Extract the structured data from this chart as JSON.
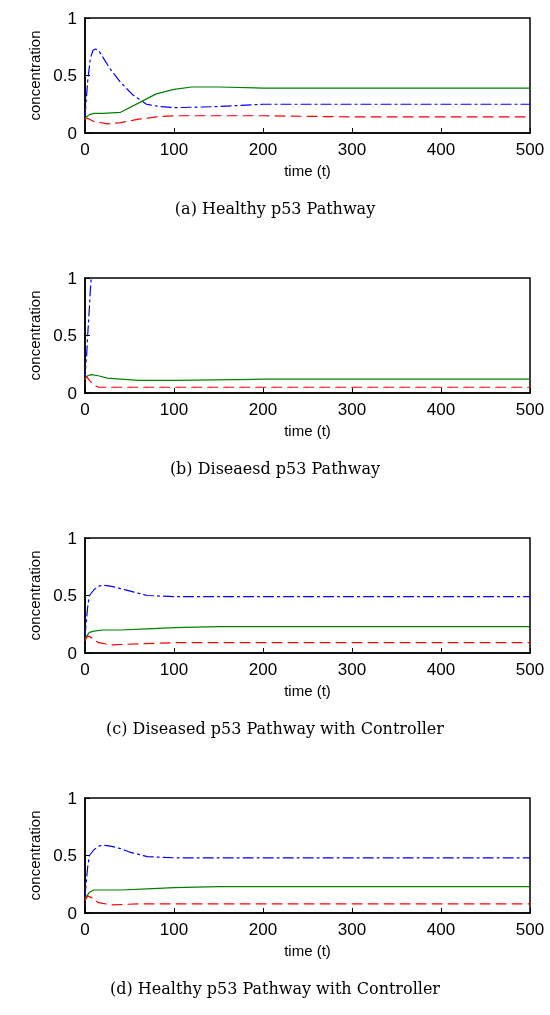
{
  "chart_data": [
    {
      "type": "line",
      "title": "(a) Healthy p53 Pathway",
      "xlabel": "time (t)",
      "ylabel": "concentration",
      "xlim": [
        0,
        500
      ],
      "xticks": [
        0,
        100,
        200,
        300,
        400,
        500
      ],
      "ylim": [
        0,
        1
      ],
      "yticks": [
        0,
        0.5,
        1
      ],
      "grid": false,
      "marker": "none",
      "series": [
        {
          "color": "#0000ff",
          "line_style": "dashdot",
          "x": [
            0,
            3,
            6,
            9,
            12,
            16,
            20,
            28,
            40,
            54,
            69,
            84,
            100,
            150,
            200,
            300,
            400,
            500
          ],
          "values": [
            0.15,
            0.45,
            0.65,
            0.72,
            0.73,
            0.71,
            0.66,
            0.56,
            0.44,
            0.33,
            0.25,
            0.23,
            0.22,
            0.23,
            0.25,
            0.25,
            0.25,
            0.25
          ]
        },
        {
          "color": "#008000",
          "line_style": "solid",
          "x": [
            0,
            5,
            10,
            20,
            40,
            60,
            80,
            100,
            120,
            150,
            200,
            300,
            400,
            500
          ],
          "values": [
            0.13,
            0.16,
            0.17,
            0.17,
            0.18,
            0.26,
            0.34,
            0.38,
            0.4,
            0.4,
            0.39,
            0.39,
            0.39,
            0.39
          ]
        },
        {
          "color": "#ff0000",
          "line_style": "dashed",
          "x": [
            0,
            2,
            5,
            10,
            25,
            40,
            60,
            80,
            100,
            150,
            200,
            300,
            400,
            500
          ],
          "values": [
            0.12,
            0.13,
            0.12,
            0.1,
            0.08,
            0.09,
            0.12,
            0.14,
            0.15,
            0.15,
            0.15,
            0.14,
            0.14,
            0.14
          ]
        }
      ]
    },
    {
      "type": "line",
      "title": "(b) Diseaesd p53 Pathway",
      "xlabel": "time (t)",
      "ylabel": "concentration",
      "xlim": [
        0,
        500
      ],
      "xticks": [
        0,
        100,
        200,
        300,
        400,
        500
      ],
      "ylim": [
        0,
        1
      ],
      "yticks": [
        0,
        0.5,
        1
      ],
      "grid": false,
      "marker": "none",
      "series": [
        {
          "color": "#0000ff",
          "line_style": "dashdot",
          "x": [
            0,
            2,
            3,
            5,
            6,
            7
          ],
          "values": [
            0.15,
            0.35,
            0.5,
            0.75,
            0.9,
            1
          ]
        },
        {
          "color": "#008000",
          "line_style": "solid",
          "x": [
            0,
            3,
            7,
            15,
            25,
            40,
            60,
            100,
            200,
            300,
            400,
            500
          ],
          "values": [
            0.13,
            0.15,
            0.16,
            0.15,
            0.13,
            0.12,
            0.11,
            0.11,
            0.12,
            0.12,
            0.12,
            0.12
          ]
        },
        {
          "color": "#ff0000",
          "line_style": "dashed",
          "x": [
            0,
            2,
            5,
            10,
            15,
            25,
            50,
            100,
            200,
            300,
            400,
            500
          ],
          "values": [
            0.12,
            0.14,
            0.11,
            0.07,
            0.05,
            0.05,
            0.05,
            0.05,
            0.05,
            0.05,
            0.05,
            0.05
          ]
        }
      ]
    },
    {
      "type": "line",
      "title": "(c) Diseased p53 Pathway with Controller",
      "xlabel": "time (t)",
      "ylabel": "concentration",
      "xlim": [
        0,
        500
      ],
      "xticks": [
        0,
        100,
        200,
        300,
        400,
        500
      ],
      "ylim": [
        0,
        1
      ],
      "yticks": [
        0,
        0.5,
        1
      ],
      "grid": false,
      "marker": "none",
      "series": [
        {
          "color": "#0000ff",
          "line_style": "dashdot",
          "x": [
            0,
            3,
            5,
            10,
            15,
            20,
            30,
            40,
            50,
            70,
            100,
            200,
            300,
            400,
            500
          ],
          "values": [
            0.15,
            0.4,
            0.5,
            0.55,
            0.58,
            0.59,
            0.58,
            0.56,
            0.54,
            0.5,
            0.49,
            0.49,
            0.49,
            0.49,
            0.49
          ]
        },
        {
          "color": "#008000",
          "line_style": "solid",
          "x": [
            0,
            3,
            5,
            10,
            20,
            40,
            70,
            100,
            150,
            200,
            300,
            400,
            500
          ],
          "values": [
            0.13,
            0.16,
            0.18,
            0.19,
            0.2,
            0.2,
            0.21,
            0.22,
            0.23,
            0.23,
            0.23,
            0.23,
            0.23
          ]
        },
        {
          "color": "#ff0000",
          "line_style": "dashed",
          "x": [
            0,
            3,
            8,
            15,
            30,
            60,
            100,
            200,
            300,
            400,
            500
          ],
          "values": [
            0.11,
            0.15,
            0.13,
            0.09,
            0.07,
            0.08,
            0.09,
            0.09,
            0.09,
            0.09,
            0.09
          ]
        }
      ]
    },
    {
      "type": "line",
      "title": "(d) Healthy p53 Pathway with Controller",
      "xlabel": "time (t)",
      "ylabel": "concentration",
      "xlim": [
        0,
        500
      ],
      "xticks": [
        0,
        100,
        200,
        300,
        400,
        500
      ],
      "ylim": [
        0,
        1
      ],
      "yticks": [
        0,
        0.5,
        1
      ],
      "grid": false,
      "marker": "none",
      "series": [
        {
          "color": "#0000ff",
          "line_style": "dashdot",
          "x": [
            0,
            3,
            5,
            10,
            15,
            20,
            30,
            40,
            50,
            70,
            100,
            200,
            300,
            400,
            500
          ],
          "values": [
            0.15,
            0.4,
            0.5,
            0.55,
            0.58,
            0.59,
            0.58,
            0.56,
            0.53,
            0.49,
            0.48,
            0.48,
            0.48,
            0.48,
            0.48
          ]
        },
        {
          "color": "#008000",
          "line_style": "solid",
          "x": [
            0,
            3,
            5,
            10,
            20,
            40,
            70,
            100,
            150,
            200,
            300,
            400,
            500
          ],
          "values": [
            0.13,
            0.16,
            0.18,
            0.2,
            0.2,
            0.2,
            0.21,
            0.22,
            0.23,
            0.23,
            0.23,
            0.23,
            0.23
          ]
        },
        {
          "color": "#ff0000",
          "line_style": "dashed",
          "x": [
            0,
            3,
            8,
            15,
            30,
            60,
            100,
            200,
            300,
            400,
            500
          ],
          "values": [
            0.11,
            0.15,
            0.13,
            0.09,
            0.07,
            0.08,
            0.08,
            0.08,
            0.08,
            0.08,
            0.08
          ]
        }
      ]
    }
  ]
}
